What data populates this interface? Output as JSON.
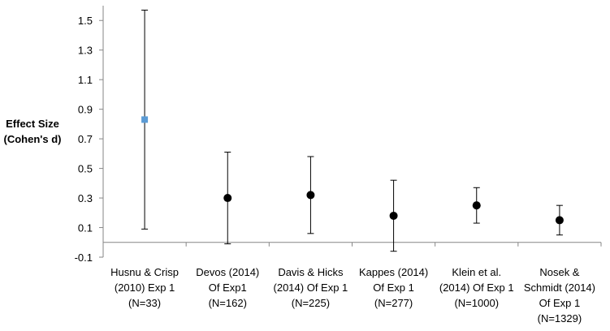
{
  "chart_data": {
    "type": "scatter",
    "title": "",
    "ylabel_lines": [
      "Effect Size",
      "(Cohen's d)"
    ],
    "xlabel": "",
    "ylim": [
      -0.1,
      1.6
    ],
    "yticks": [
      -0.1,
      0.1,
      0.3,
      0.5,
      0.7,
      0.9,
      1.1,
      1.3,
      1.5
    ],
    "ytick_labels": [
      "-0.1",
      "0.1",
      "0.3",
      "0.5",
      "0.7",
      "0.9",
      "1.1",
      "1.3",
      "1.5"
    ],
    "grid": false,
    "categories": [
      {
        "lines": [
          "Husnu & Crisp",
          "(2010) Exp 1",
          "(N=33)"
        ]
      },
      {
        "lines": [
          "Devos (2014)",
          "Of Exp1",
          "(N=162)"
        ]
      },
      {
        "lines": [
          "Davis & Hicks",
          "(2014) Of Exp 1",
          "(N=225)"
        ]
      },
      {
        "lines": [
          "Kappes (2014)",
          "Of Exp 1",
          "(N=277)"
        ]
      },
      {
        "lines": [
          "Klein et al.",
          "(2014) Of Exp 1",
          "(N=1000)"
        ]
      },
      {
        "lines": [
          "Nosek &",
          "Schmidt (2014)",
          "Of Exp 1",
          "(N=1329)"
        ]
      }
    ],
    "points": [
      {
        "value": 0.83,
        "lower": 0.09,
        "upper": 1.57,
        "marker": "square",
        "color": "#5b9bd5"
      },
      {
        "value": 0.3,
        "lower": -0.01,
        "upper": 0.61,
        "marker": "circle",
        "color": "#000000"
      },
      {
        "value": 0.32,
        "lower": 0.06,
        "upper": 0.58,
        "marker": "circle",
        "color": "#000000"
      },
      {
        "value": 0.18,
        "lower": -0.06,
        "upper": 0.42,
        "marker": "circle",
        "color": "#000000"
      },
      {
        "value": 0.25,
        "lower": 0.13,
        "upper": 0.37,
        "marker": "circle",
        "color": "#000000"
      },
      {
        "value": 0.15,
        "lower": 0.05,
        "upper": 0.25,
        "marker": "circle",
        "color": "#000000"
      }
    ]
  }
}
